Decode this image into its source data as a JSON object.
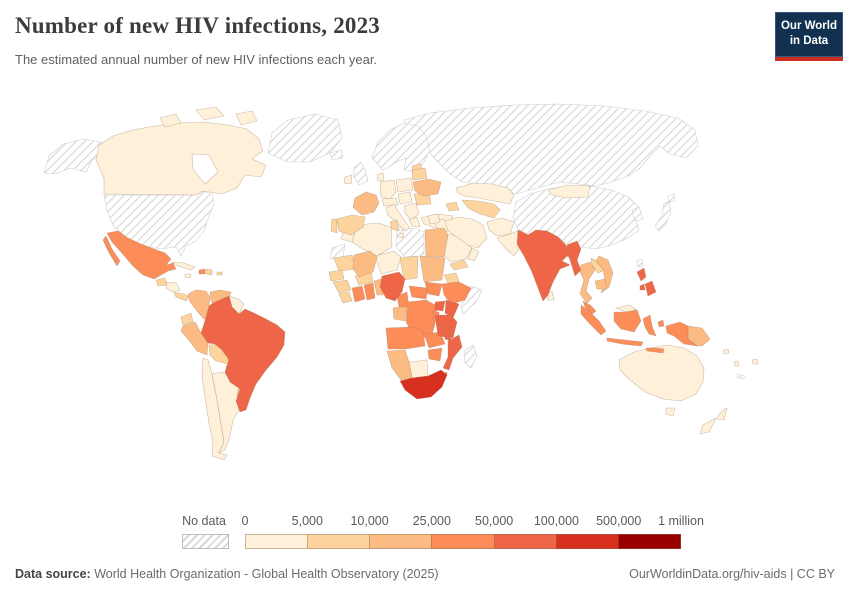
{
  "header": {
    "title": "Number of new HIV infections, 2023",
    "subtitle": "The estimated annual number of new HIV infections each year.",
    "logo": {
      "line1": "Our World",
      "line2": "in Data",
      "bg_color": "#12304f",
      "stripe_color": "#cb2f22"
    }
  },
  "footer": {
    "source_label": "Data source:",
    "source_text": " World Health Organization - Global Health Observatory (2025)",
    "right_text": "OurWorldinData.org/hiv-aids | CC BY"
  },
  "chart_data": {
    "type": "heatmap",
    "subtype": "choropleth_world_map",
    "title": "Number of new HIV infections, 2023",
    "year": 2023,
    "legend": {
      "no_data_label": "No data",
      "bin_edges": [
        "0",
        "5,000",
        "10,000",
        "25,000",
        "50,000",
        "100,000",
        "500,000",
        "1 million"
      ],
      "bin_ranges": [
        "0-5,000",
        "5,000-10,000",
        "10,000-25,000",
        "25,000-50,000",
        "50,000-100,000",
        "100,000-500,000",
        "500,000-1 million"
      ],
      "bin_colors": [
        "#fef0d9",
        "#fdd49e",
        "#fdbb84",
        "#fc8d59",
        "#ef6548",
        "#d7301f",
        "#990000"
      ],
      "no_data_pattern": "diagonal-hatch",
      "hatch_color": "#d6d6d6"
    },
    "countries": [
      {
        "id": "united-states",
        "name": "United States",
        "no_data": true
      },
      {
        "id": "greenland",
        "name": "Greenland",
        "no_data": true
      },
      {
        "id": "russia",
        "name": "Russia",
        "no_data": true
      },
      {
        "id": "china",
        "name": "China",
        "no_data": true
      },
      {
        "id": "japan",
        "name": "Japan",
        "no_data": true
      },
      {
        "id": "korea",
        "name": "North and South Korea",
        "no_data": true
      },
      {
        "id": "taiwan",
        "name": "Taiwan",
        "no_data": true
      },
      {
        "id": "united-kingdom",
        "name": "United Kingdom",
        "no_data": true
      },
      {
        "id": "iceland",
        "name": "Iceland",
        "no_data": true
      },
      {
        "id": "scandinavia",
        "name": "Norway, Sweden and Finland",
        "no_data": true
      },
      {
        "id": "libya",
        "name": "Libya",
        "no_data": true
      },
      {
        "id": "western-sahara",
        "name": "Western Sahara",
        "no_data": true
      },
      {
        "id": "somalia",
        "name": "Somalia",
        "no_data": true
      },
      {
        "id": "madagascar",
        "name": "Madagascar",
        "no_data": true
      },
      {
        "id": "new-caledonia",
        "name": "New Caledonia",
        "no_data": true
      },
      {
        "id": "canada",
        "name": "Canada",
        "bin": 0
      },
      {
        "id": "cuba",
        "name": "Cuba",
        "bin": 0
      },
      {
        "id": "jamaica",
        "name": "Jamaica",
        "bin": 0
      },
      {
        "id": "honduras-nicaragua",
        "name": "Honduras and Nicaragua",
        "bin": 0
      },
      {
        "id": "guyanas",
        "name": "Guyana and Suriname",
        "bin": 0
      },
      {
        "id": "chile",
        "name": "Chile",
        "bin": 0
      },
      {
        "id": "argentina",
        "name": "Argentina",
        "bin": 0
      },
      {
        "id": "ireland",
        "name": "Ireland",
        "bin": 0
      },
      {
        "id": "denmark",
        "name": "Denmark",
        "bin": 0
      },
      {
        "id": "germany",
        "name": "Germany",
        "bin": 0
      },
      {
        "id": "poland",
        "name": "Poland",
        "bin": 0
      },
      {
        "id": "central-europe",
        "name": "Switzerland and Austria",
        "bin": 0
      },
      {
        "id": "hungary-czechia",
        "name": "Czechia and Hungary",
        "bin": 0
      },
      {
        "id": "italy",
        "name": "Italy",
        "bin": 0
      },
      {
        "id": "balkans",
        "name": "Balkans",
        "bin": 0
      },
      {
        "id": "greece",
        "name": "Greece",
        "bin": 0
      },
      {
        "id": "turkey",
        "name": "Turkey",
        "bin": 0
      },
      {
        "id": "kazakhstan",
        "name": "Kazakhstan",
        "bin": 0
      },
      {
        "id": "iran",
        "name": "Iran",
        "bin": 0
      },
      {
        "id": "iraq",
        "name": "Iraq",
        "bin": 0
      },
      {
        "id": "syria",
        "name": "Syria",
        "bin": 0
      },
      {
        "id": "saudi-arabia",
        "name": "Saudi Arabia",
        "bin": 0
      },
      {
        "id": "oman",
        "name": "Oman",
        "bin": 0
      },
      {
        "id": "afghanistan",
        "name": "Afghanistan",
        "bin": 0
      },
      {
        "id": "pakistan",
        "name": "Pakistan",
        "bin": 0
      },
      {
        "id": "nepal",
        "name": "Nepal",
        "bin": 0
      },
      {
        "id": "sri-lanka",
        "name": "Sri Lanka",
        "bin": 0
      },
      {
        "id": "mongolia",
        "name": "Mongolia",
        "bin": 0
      },
      {
        "id": "morocco",
        "name": "Morocco",
        "bin": 0
      },
      {
        "id": "algeria",
        "name": "Algeria",
        "bin": 0
      },
      {
        "id": "niger",
        "name": "Niger",
        "bin": 0
      },
      {
        "id": "chad",
        "name": "Chad",
        "bin": 1
      },
      {
        "id": "botswana",
        "name": "Botswana",
        "bin": 0
      },
      {
        "id": "lesotho",
        "name": "Lesotho",
        "bin": 0
      },
      {
        "id": "north-borneo",
        "name": "East Malaysia and Brunei",
        "bin": 0
      },
      {
        "id": "australia",
        "name": "Australia",
        "bin": 0
      },
      {
        "id": "new-zealand",
        "name": "New Zealand",
        "bin": 0
      },
      {
        "id": "solomon-islands",
        "name": "Solomon Islands",
        "bin": 0
      },
      {
        "id": "vanuatu",
        "name": "Vanuatu",
        "bin": 0
      },
      {
        "id": "fiji",
        "name": "Fiji",
        "bin": 0
      },
      {
        "id": "guatemala",
        "name": "Guatemala",
        "bin": 1
      },
      {
        "id": "costa-rica-panama",
        "name": "Costa Rica and Panama",
        "bin": 1
      },
      {
        "id": "dominican-republic",
        "name": "Dominican Republic",
        "bin": 1
      },
      {
        "id": "puerto-rico",
        "name": "Puerto Rico",
        "bin": 1
      },
      {
        "id": "ecuador",
        "name": "Ecuador",
        "bin": 1
      },
      {
        "id": "bolivia",
        "name": "Bolivia",
        "bin": 1
      },
      {
        "id": "paraguay",
        "name": "Paraguay",
        "bin": 1
      },
      {
        "id": "uruguay",
        "name": "Uruguay",
        "bin": 1
      },
      {
        "id": "baltics",
        "name": "Baltic states",
        "bin": 1
      },
      {
        "id": "belarus",
        "name": "Belarus",
        "bin": 1
      },
      {
        "id": "romania",
        "name": "Romania",
        "bin": 1
      },
      {
        "id": "spain",
        "name": "Spain",
        "bin": 1
      },
      {
        "id": "portugal",
        "name": "Portugal",
        "bin": 1
      },
      {
        "id": "central-asia",
        "name": "Central Asia",
        "bin": 1
      },
      {
        "id": "caucasus",
        "name": "Caucasus",
        "bin": 1
      },
      {
        "id": "yemen",
        "name": "Yemen",
        "bin": 1
      },
      {
        "id": "laos",
        "name": "Laos",
        "bin": 1
      },
      {
        "id": "tunisia",
        "name": "Tunisia",
        "bin": 1
      },
      {
        "id": "mauritania",
        "name": "Mauritania",
        "bin": 1
      },
      {
        "id": "senegal",
        "name": "Senegal",
        "bin": 1
      },
      {
        "id": "guinea",
        "name": "Guinea",
        "bin": 1
      },
      {
        "id": "sierra-leone-liberia",
        "name": "Sierra Leone and Liberia",
        "bin": 1
      },
      {
        "id": "burkina-faso",
        "name": "Burkina Faso",
        "bin": 1
      },
      {
        "id": "eritrea",
        "name": "Eritrea",
        "bin": 1
      },
      {
        "id": "colombia",
        "name": "Colombia",
        "bin": 2
      },
      {
        "id": "venezuela",
        "name": "Venezuela",
        "bin": 2
      },
      {
        "id": "peru",
        "name": "Peru",
        "bin": 2
      },
      {
        "id": "france",
        "name": "France",
        "bin": 2
      },
      {
        "id": "ukraine",
        "name": "Ukraine",
        "bin": 2
      },
      {
        "id": "egypt",
        "name": "Egypt",
        "bin": 2
      },
      {
        "id": "mali",
        "name": "Mali",
        "bin": 2
      },
      {
        "id": "sudan",
        "name": "Sudan",
        "bin": 2
      },
      {
        "id": "togo-benin",
        "name": "Togo and Benin",
        "bin": 2
      },
      {
        "id": "gabon-congo",
        "name": "Gabon and Congo",
        "bin": 2
      },
      {
        "id": "bangladesh",
        "name": "Bangladesh",
        "bin": 2
      },
      {
        "id": "thailand",
        "name": "Thailand",
        "bin": 2
      },
      {
        "id": "vietnam",
        "name": "Vietnam",
        "bin": 2
      },
      {
        "id": "cambodia",
        "name": "Cambodia",
        "bin": 2
      },
      {
        "id": "papua-new-guinea",
        "name": "Papua New Guinea",
        "bin": 2
      },
      {
        "id": "namibia",
        "name": "Namibia",
        "bin": 2
      },
      {
        "id": "mexico",
        "name": "Mexico",
        "bin": 3
      },
      {
        "id": "haiti",
        "name": "Haiti",
        "bin": 3
      },
      {
        "id": "cote-divoire",
        "name": "Côte d'Ivoire",
        "bin": 3
      },
      {
        "id": "ghana",
        "name": "Ghana",
        "bin": 3
      },
      {
        "id": "cameroon",
        "name": "Cameroon",
        "bin": 3
      },
      {
        "id": "central-african-republic",
        "name": "Central African Republic",
        "bin": 3
      },
      {
        "id": "south-sudan",
        "name": "South Sudan",
        "bin": 3
      },
      {
        "id": "drc",
        "name": "Democratic Republic of Congo",
        "bin": 3
      },
      {
        "id": "rwanda-burundi",
        "name": "Rwanda and Burundi",
        "bin": 3
      },
      {
        "id": "ethiopia",
        "name": "Ethiopia",
        "bin": 3
      },
      {
        "id": "angola",
        "name": "Angola",
        "bin": 3
      },
      {
        "id": "zambia",
        "name": "Zambia",
        "bin": 3
      },
      {
        "id": "zimbabwe",
        "name": "Zimbabwe",
        "bin": 3
      },
      {
        "id": "eswatini",
        "name": "Eswatini",
        "bin": 3
      },
      {
        "id": "malaysia",
        "name": "Malaysia",
        "bin": 3
      },
      {
        "id": "indonesia",
        "name": "Indonesia",
        "bin": 3
      },
      {
        "id": "brazil",
        "name": "Brazil",
        "bin": 4
      },
      {
        "id": "india",
        "name": "India",
        "bin": 4
      },
      {
        "id": "myanmar",
        "name": "Myanmar",
        "bin": 4
      },
      {
        "id": "nigeria",
        "name": "Nigeria",
        "bin": 4
      },
      {
        "id": "uganda",
        "name": "Uganda",
        "bin": 4
      },
      {
        "id": "kenya",
        "name": "Kenya",
        "bin": 4
      },
      {
        "id": "tanzania",
        "name": "Tanzania",
        "bin": 4
      },
      {
        "id": "malawi",
        "name": "Malawi",
        "bin": 4
      },
      {
        "id": "mozambique",
        "name": "Mozambique",
        "bin": 4
      },
      {
        "id": "philippines",
        "name": "Philippines",
        "bin": 4
      },
      {
        "id": "south-africa",
        "name": "South Africa",
        "bin": 5
      }
    ]
  }
}
